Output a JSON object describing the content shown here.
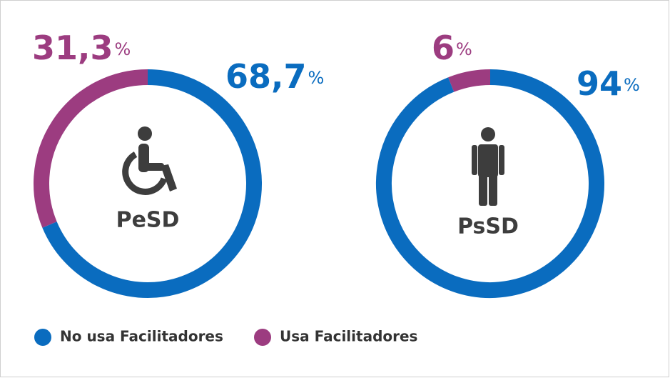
{
  "chart_data": [
    {
      "type": "pie",
      "title": "PeSD",
      "categories": [
        "No usa Facilitadores",
        "Usa Facilitadores"
      ],
      "values": [
        68.7,
        31.3
      ],
      "value_labels": [
        "68,7",
        "31,3"
      ],
      "unit": "%",
      "colors": [
        "#0a6cbf",
        "#9c3c80"
      ],
      "donut": true
    },
    {
      "type": "pie",
      "title": "PsSD",
      "categories": [
        "No usa Facilitadores",
        "Usa Facilitadores"
      ],
      "values": [
        94,
        6
      ],
      "value_labels": [
        "94",
        "6"
      ],
      "unit": "%",
      "colors": [
        "#0a6cbf",
        "#9c3c80"
      ],
      "donut": true
    }
  ]
}
